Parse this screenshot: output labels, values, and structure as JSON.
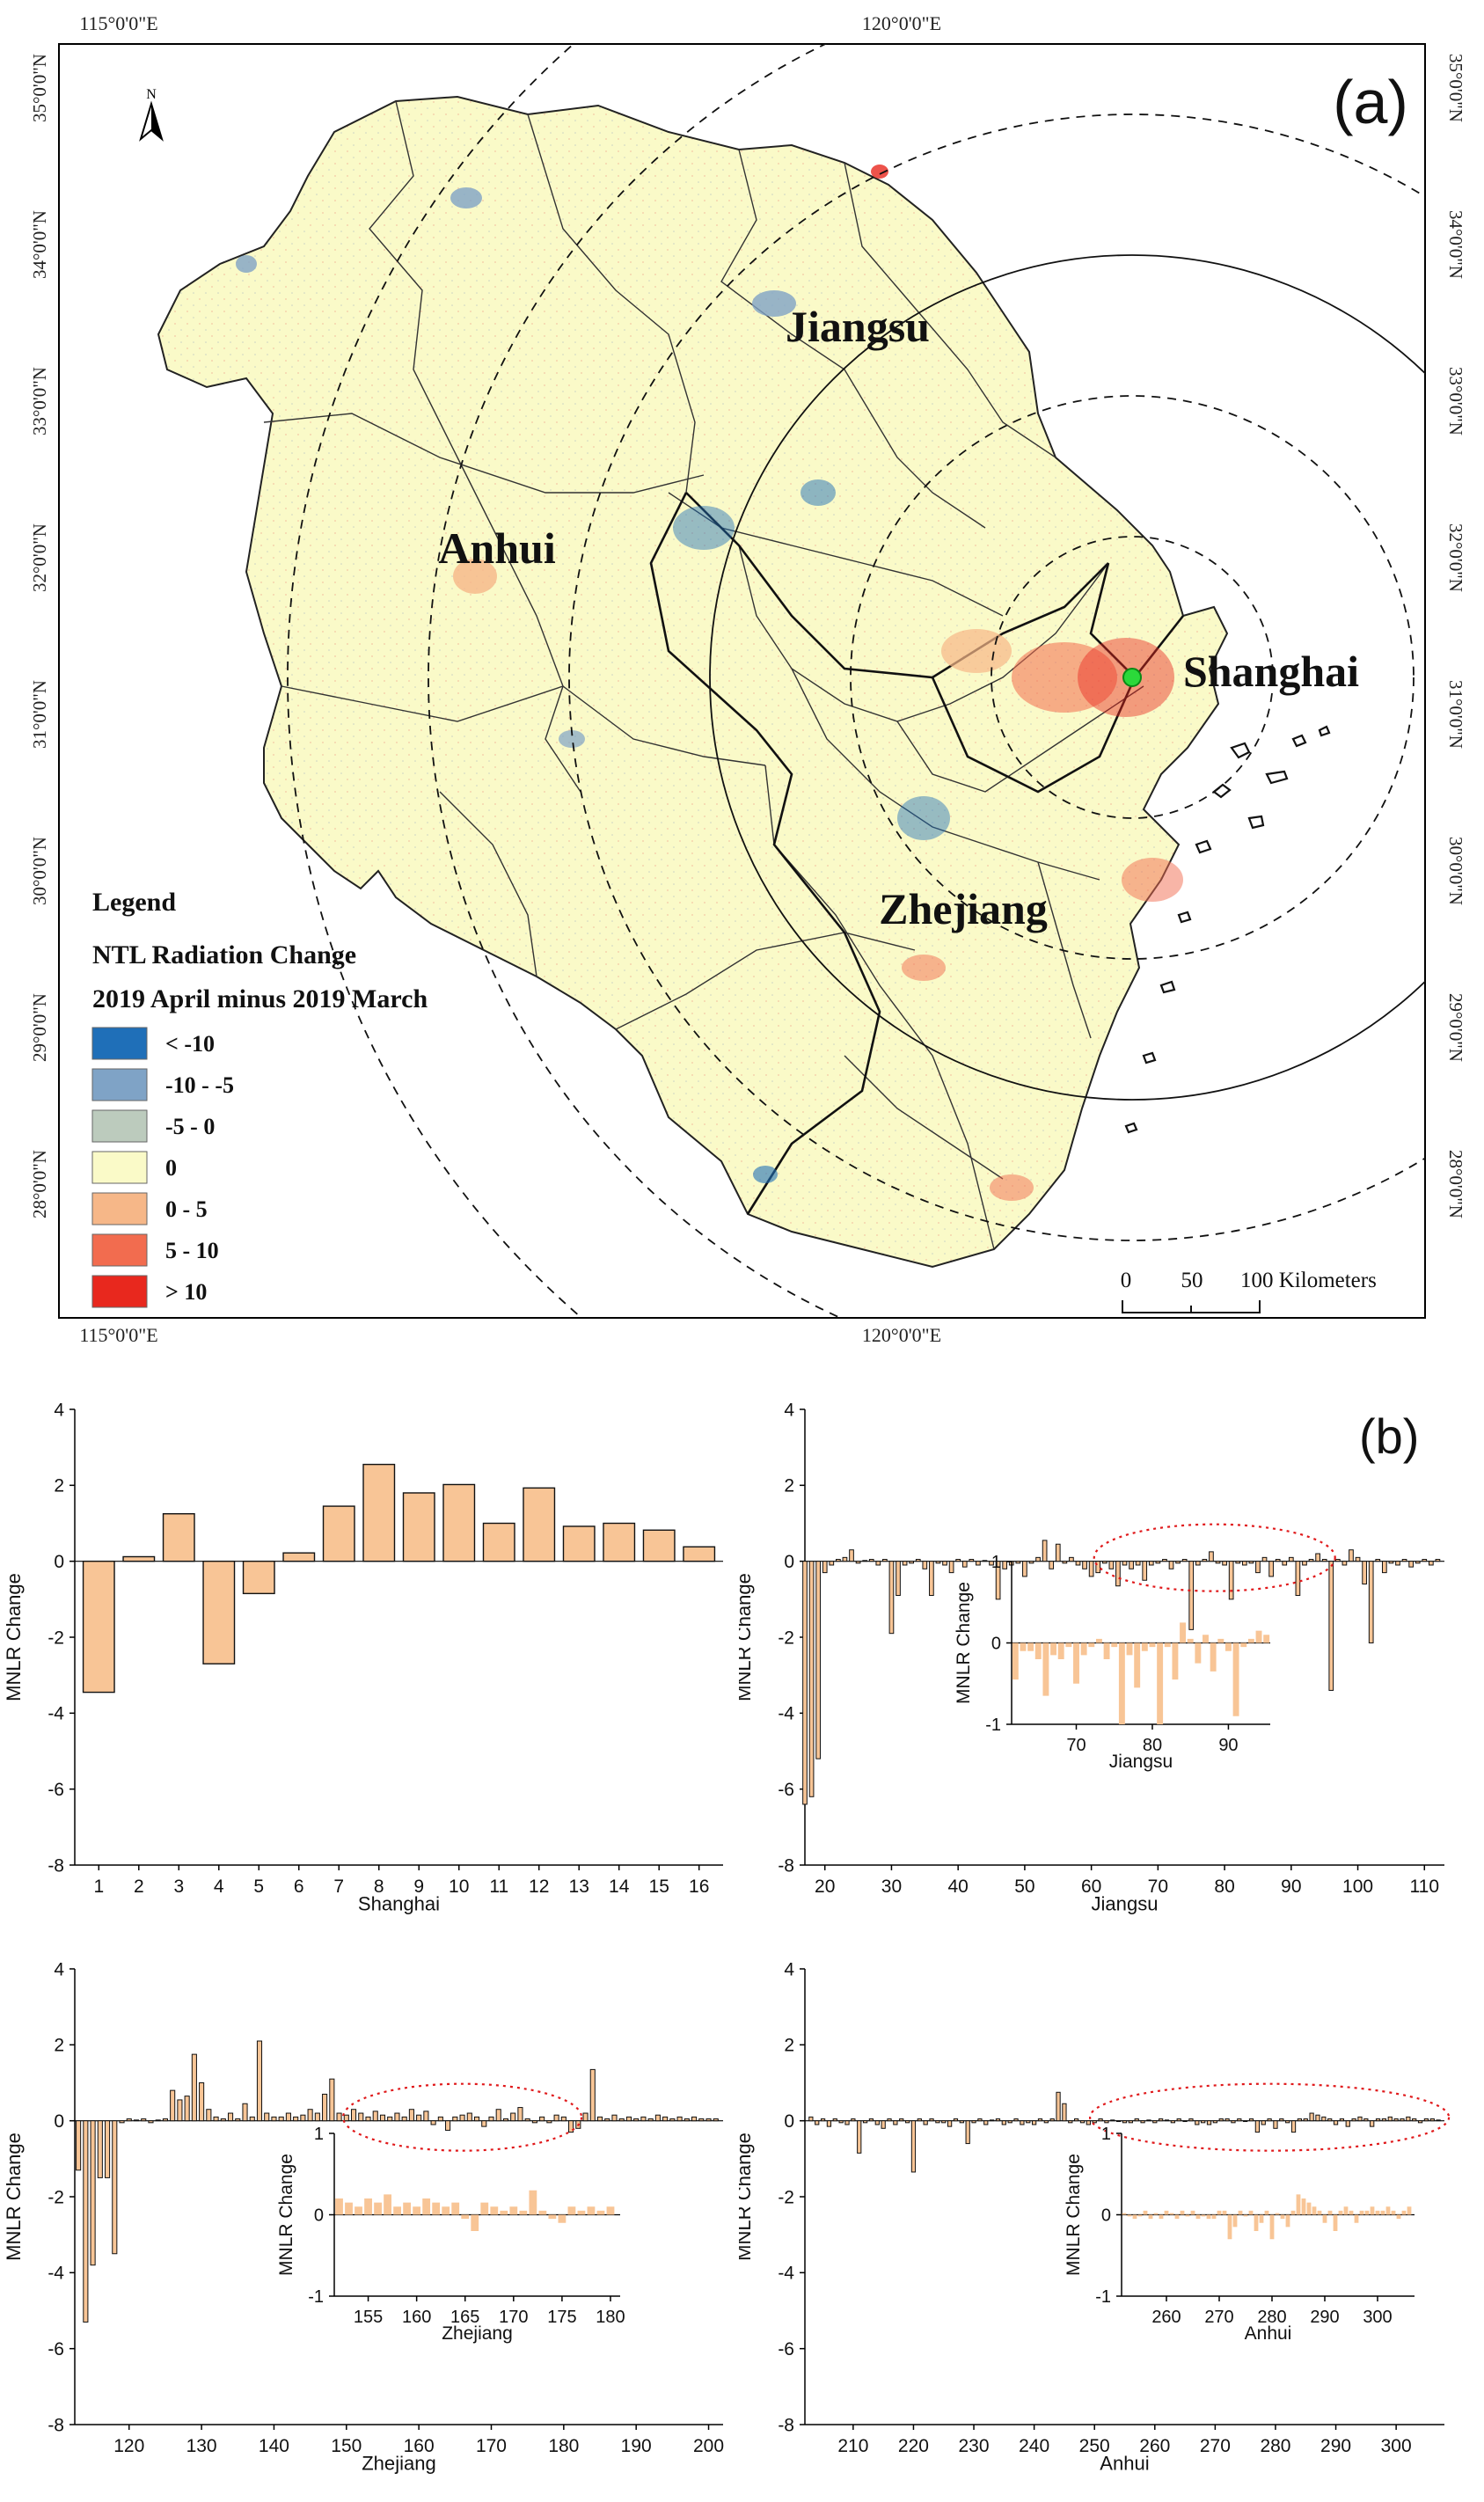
{
  "panel_a": {
    "label": "(a)",
    "top_coords": [
      "115°0'0\"E",
      "120°0'0\"E"
    ],
    "bottom_coords": [
      "115°0'0\"E",
      "120°0'0\"E"
    ],
    "lat_labels": [
      "35°0'0\"N",
      "34°0'0\"N",
      "33°0'0\"N",
      "32°0'0\"N",
      "31°0'0\"N",
      "30°0'0\"N",
      "29°0'0\"N",
      "28°0'0\"N"
    ],
    "north_letter": "N",
    "provinces": [
      "Jiangsu",
      "Anhui",
      "Shanghai",
      "Zhejiang"
    ],
    "legend": {
      "heading": "Legend",
      "title": "NTL Radiation Change",
      "subtitle": "2019 April minus 2019 March",
      "items": [
        {
          "label": "< -10",
          "color": "#1f6fb8"
        },
        {
          "label": "-10 - -5",
          "color": "#7fa3c6"
        },
        {
          "label": "-5 - 0",
          "color": "#bccbbd"
        },
        {
          "label": "0",
          "color": "#fafac8"
        },
        {
          "label": "0 - 5",
          "color": "#f6b788"
        },
        {
          "label": "5 - 10",
          "color": "#f26c4f"
        },
        {
          "label": "> 10",
          "color": "#e8281e"
        }
      ]
    },
    "scale_bar": {
      "ticks": [
        "0",
        "50",
        "100 Kilometers"
      ]
    }
  },
  "panel_b_label": "(b)",
  "chart_data": [
    {
      "type": "bar",
      "xlabel": "Shanghai",
      "ylabel": "MNLR Change",
      "ylim": [
        -8,
        4
      ],
      "yticks": [
        4,
        2,
        0,
        -2,
        -4,
        -6,
        -8
      ],
      "xlim": [
        0.4,
        16.6
      ],
      "xticks": [
        1,
        2,
        3,
        4,
        5,
        6,
        7,
        8,
        9,
        10,
        11,
        12,
        13,
        14,
        15,
        16
      ],
      "x": [
        1,
        2,
        3,
        4,
        5,
        6,
        7,
        8,
        9,
        10,
        11,
        12,
        13,
        14,
        15,
        16
      ],
      "values": [
        -3.45,
        0.12,
        1.25,
        -2.7,
        -0.85,
        0.22,
        1.45,
        2.55,
        1.8,
        2.02,
        1.0,
        1.93,
        0.92,
        1.0,
        0.82,
        0.38
      ]
    },
    {
      "type": "bar",
      "xlabel": "Jiangsu",
      "ylabel": "MNLR Change",
      "ylim": [
        -8,
        4
      ],
      "yticks": [
        4,
        2,
        0,
        -2,
        -4,
        -6,
        -8
      ],
      "xlim": [
        17,
        113
      ],
      "xticks": [
        20,
        30,
        40,
        50,
        60,
        70,
        80,
        90,
        100,
        110
      ],
      "x": [
        17,
        18,
        19,
        20,
        21,
        22,
        23,
        24,
        25,
        26,
        27,
        28,
        29,
        30,
        31,
        32,
        33,
        34,
        35,
        36,
        37,
        38,
        39,
        40,
        41,
        42,
        43,
        44,
        45,
        46,
        47,
        48,
        49,
        50,
        51,
        52,
        53,
        54,
        55,
        56,
        57,
        58,
        59,
        60,
        61,
        62,
        63,
        64,
        65,
        66,
        67,
        68,
        69,
        70,
        71,
        72,
        73,
        74,
        75,
        76,
        77,
        78,
        79,
        80,
        81,
        82,
        83,
        84,
        85,
        86,
        87,
        88,
        89,
        90,
        91,
        92,
        93,
        94,
        95,
        96,
        97,
        98,
        99,
        100,
        101,
        102,
        103,
        104,
        105,
        106,
        107,
        108,
        109,
        110,
        111,
        112
      ],
      "values": [
        -6.4,
        -6.2,
        -5.2,
        -0.3,
        -0.1,
        0.05,
        0.1,
        0.3,
        -0.05,
        0.02,
        0.05,
        -0.1,
        0.05,
        -1.9,
        -0.9,
        -0.1,
        -0.05,
        0.05,
        -0.2,
        -0.9,
        -0.05,
        -0.1,
        -0.3,
        0.05,
        -0.15,
        0.05,
        -0.1,
        0.02,
        -0.1,
        -1.0,
        -0.2,
        -0.1,
        -0.05,
        -0.4,
        -0.05,
        0.1,
        0.55,
        -0.2,
        0.45,
        -0.05,
        0.1,
        -0.1,
        -0.2,
        -0.4,
        -0.3,
        -0.05,
        -0.2,
        -0.65,
        -0.1,
        -0.2,
        -0.1,
        -0.5,
        -0.1,
        -0.05,
        0.05,
        -0.2,
        -0.05,
        0.05,
        -1.8,
        -0.1,
        0.05,
        0.25,
        -0.05,
        -0.1,
        -1.0,
        -0.05,
        -0.1,
        -0.05,
        -0.3,
        0.1,
        -0.4,
        0.05,
        -0.1,
        0.1,
        -0.9,
        -0.1,
        0.05,
        0.2,
        0.05,
        -3.4,
        0.05,
        -0.1,
        0.3,
        0.1,
        -0.6,
        -2.15,
        0.05,
        -0.3,
        -0.05,
        -0.1,
        0.05,
        -0.15,
        -0.05,
        0.05,
        -0.1,
        0.05
      ],
      "inset": {
        "xlabel": "Jiangsu",
        "ylabel": "MNLR Change",
        "ylim": [
          -1,
          1
        ],
        "yticks": [
          1,
          0,
          -1
        ],
        "xlim": [
          61.5,
          95.5
        ],
        "xticks": [
          70,
          80,
          90
        ],
        "x": [
          62,
          63,
          64,
          65,
          66,
          67,
          68,
          69,
          70,
          71,
          72,
          73,
          74,
          75,
          76,
          77,
          78,
          79,
          80,
          81,
          82,
          83,
          84,
          85,
          86,
          87,
          88,
          89,
          90,
          91,
          92,
          93,
          94,
          95
        ],
        "values": [
          -0.45,
          -0.1,
          -0.1,
          -0.2,
          -0.65,
          -0.15,
          -0.2,
          -0.05,
          -0.5,
          -0.15,
          -0.05,
          0.05,
          -0.2,
          -0.05,
          -1.0,
          -0.15,
          -0.55,
          -0.1,
          -0.05,
          -1.0,
          -0.05,
          -0.45,
          0.25,
          0.05,
          -0.25,
          0.1,
          -0.35,
          0.05,
          -0.1,
          -0.9,
          -0.05,
          0.05,
          0.15,
          0.1
        ]
      },
      "highlight": {
        "x_range": [
          62,
          95
        ],
        "shape": "dotted ellipse",
        "color": "#e0191b"
      }
    },
    {
      "type": "bar",
      "xlabel": "Zhejiang",
      "ylabel": "MNLR Change",
      "ylim": [
        -8,
        4
      ],
      "yticks": [
        4,
        2,
        0,
        -2,
        -4,
        -6,
        -8
      ],
      "xlim": [
        112.5,
        202
      ],
      "xticks": [
        120,
        130,
        140,
        150,
        160,
        170,
        180,
        190,
        200
      ],
      "x": [
        113,
        114,
        115,
        116,
        117,
        118,
        119,
        120,
        121,
        122,
        123,
        124,
        125,
        126,
        127,
        128,
        129,
        130,
        131,
        132,
        133,
        134,
        135,
        136,
        137,
        138,
        139,
        140,
        141,
        142,
        143,
        144,
        145,
        146,
        147,
        148,
        149,
        150,
        151,
        152,
        153,
        154,
        155,
        156,
        157,
        158,
        159,
        160,
        161,
        162,
        163,
        164,
        165,
        166,
        167,
        168,
        169,
        170,
        171,
        172,
        173,
        174,
        175,
        176,
        177,
        178,
        179,
        180,
        181,
        182,
        183,
        184,
        185,
        186,
        187,
        188,
        189,
        190,
        191,
        192,
        193,
        194,
        195,
        196,
        197,
        198,
        199,
        200,
        201
      ],
      "values": [
        -1.3,
        -5.3,
        -3.8,
        -1.5,
        -1.5,
        -3.5,
        -0.05,
        0.05,
        0.02,
        0.05,
        -0.05,
        0.02,
        0.05,
        0.8,
        0.55,
        0.65,
        1.75,
        1.0,
        0.3,
        0.1,
        0.05,
        0.2,
        0.05,
        0.45,
        0.1,
        2.1,
        0.2,
        0.1,
        0.1,
        0.2,
        0.1,
        0.15,
        0.3,
        0.2,
        0.7,
        1.1,
        0.2,
        0.15,
        0.3,
        0.2,
        0.1,
        0.25,
        0.15,
        0.1,
        0.2,
        0.1,
        0.3,
        0.15,
        0.25,
        -0.1,
        0.1,
        -0.25,
        0.1,
        0.15,
        0.2,
        0.1,
        -0.15,
        0.1,
        0.3,
        0.05,
        0.2,
        0.35,
        0.05,
        -0.05,
        0.1,
        -0.05,
        0.15,
        0.1,
        -0.3,
        -0.2,
        0.2,
        1.35,
        0.1,
        0.05,
        0.15,
        0.05,
        0.1,
        0.05,
        0.1,
        0.05,
        0.15,
        0.1,
        0.05,
        0.1,
        0.05,
        0.1,
        0.05,
        0.05,
        0.05
      ],
      "inset": {
        "xlabel": "Zhejiang",
        "ylabel": "MNLR Change",
        "ylim": [
          -1,
          1
        ],
        "yticks": [
          1,
          0,
          -1
        ],
        "xlim": [
          151.5,
          181
        ],
        "xticks": [
          155,
          160,
          165,
          170,
          175,
          180
        ],
        "x": [
          152,
          153,
          154,
          155,
          156,
          157,
          158,
          159,
          160,
          161,
          162,
          163,
          164,
          165,
          166,
          167,
          168,
          169,
          170,
          171,
          172,
          173,
          174,
          175,
          176,
          177,
          178,
          179,
          180
        ],
        "values": [
          0.2,
          0.15,
          0.1,
          0.2,
          0.15,
          0.25,
          0.1,
          0.15,
          0.1,
          0.2,
          0.15,
          0.1,
          0.15,
          -0.05,
          -0.2,
          0.15,
          0.1,
          0.05,
          0.1,
          0.05,
          0.3,
          0.05,
          -0.05,
          -0.1,
          0.1,
          0.05,
          0.1,
          0.05,
          0.1
        ]
      },
      "highlight": {
        "x_range": [
          151,
          181
        ],
        "shape": "dotted ellipse",
        "color": "#e0191b"
      }
    },
    {
      "type": "bar",
      "xlabel": "Anhui",
      "ylabel": "MNLR Change",
      "ylim": [
        -8,
        4
      ],
      "yticks": [
        4,
        2,
        0,
        -2,
        -4,
        -6,
        -8
      ],
      "xlim": [
        202,
        308
      ],
      "xticks": [
        210,
        220,
        230,
        240,
        250,
        260,
        270,
        280,
        290,
        300
      ],
      "x": [
        203,
        204,
        205,
        206,
        207,
        208,
        209,
        210,
        211,
        212,
        213,
        214,
        215,
        216,
        217,
        218,
        219,
        220,
        221,
        222,
        223,
        224,
        225,
        226,
        227,
        228,
        229,
        230,
        231,
        232,
        233,
        234,
        235,
        236,
        237,
        238,
        239,
        240,
        241,
        242,
        243,
        244,
        245,
        246,
        247,
        248,
        249,
        250,
        251,
        252,
        253,
        254,
        255,
        256,
        257,
        258,
        259,
        260,
        261,
        262,
        263,
        264,
        265,
        266,
        267,
        268,
        269,
        270,
        271,
        272,
        273,
        274,
        275,
        276,
        277,
        278,
        279,
        280,
        281,
        282,
        283,
        284,
        285,
        286,
        287,
        288,
        289,
        290,
        291,
        292,
        293,
        294,
        295,
        296,
        297,
        298,
        299,
        300,
        301,
        302,
        303,
        304,
        305,
        306,
        307
      ],
      "values": [
        0.1,
        -0.1,
        0.05,
        -0.15,
        0.05,
        -0.05,
        -0.1,
        0.05,
        -0.85,
        -0.05,
        0.05,
        -0.1,
        -0.2,
        0.05,
        -0.1,
        0.05,
        -0.05,
        -1.35,
        0.05,
        -0.1,
        0.05,
        -0.05,
        -0.05,
        -0.15,
        0.05,
        -0.05,
        -0.6,
        -0.05,
        0.05,
        -0.1,
        0.02,
        0.05,
        -0.1,
        -0.05,
        0.05,
        -0.1,
        -0.05,
        -0.1,
        0.05,
        -0.05,
        0.05,
        0.75,
        0.45,
        -0.05,
        0.05,
        -0.05,
        -0.1,
        -0.05,
        0.05,
        -0.05,
        0.02,
        -0.02,
        -0.05,
        -0.05,
        0.05,
        -0.05,
        0.02,
        -0.05,
        0.05,
        0.02,
        -0.05,
        0.05,
        -0.02,
        0.05,
        -0.1,
        -0.05,
        -0.1,
        -0.05,
        0.05,
        0.05,
        -0.05,
        0.05,
        -0.02,
        0.05,
        -0.3,
        -0.1,
        0.05,
        -0.2,
        0.05,
        -0.05,
        -0.3,
        0.05,
        0.05,
        0.2,
        0.15,
        0.1,
        0.05,
        -0.1,
        0.05,
        -0.15,
        0.05,
        0.1,
        0.05,
        -0.15,
        0.05,
        0.05,
        0.1,
        0.05,
        0.05,
        0.1,
        0.05,
        -0.05,
        0.05,
        0.05,
        0.02
      ],
      "inset": {
        "xlabel": "Anhui",
        "ylabel": "MNLR Change",
        "ylim": [
          -1,
          1
        ],
        "yticks": [
          1,
          0,
          -1
        ],
        "xlim": [
          251.5,
          307
        ],
        "xticks": [
          260,
          270,
          280,
          290,
          300
        ],
        "x": [
          252,
          253,
          254,
          255,
          256,
          257,
          258,
          259,
          260,
          261,
          262,
          263,
          264,
          265,
          266,
          267,
          268,
          269,
          270,
          271,
          272,
          273,
          274,
          275,
          276,
          277,
          278,
          279,
          280,
          281,
          282,
          283,
          284,
          285,
          286,
          287,
          288,
          289,
          290,
          291,
          292,
          293,
          294,
          295,
          296,
          297,
          298,
          299,
          300,
          301,
          302,
          303,
          304,
          305,
          306
        ],
        "values": [
          0.02,
          -0.02,
          -0.05,
          -0.02,
          0.05,
          -0.05,
          0.02,
          -0.05,
          0.05,
          0.02,
          -0.05,
          0.05,
          -0.02,
          0.05,
          -0.05,
          -0.02,
          -0.05,
          -0.05,
          0.05,
          0.05,
          -0.3,
          -0.15,
          0.05,
          -0.02,
          0.05,
          -0.2,
          -0.1,
          0.05,
          -0.3,
          0.02,
          -0.05,
          -0.15,
          0.05,
          0.25,
          0.2,
          0.15,
          0.1,
          0.05,
          -0.1,
          0.05,
          -0.2,
          0.05,
          0.1,
          0.05,
          -0.1,
          0.05,
          0.05,
          0.1,
          0.05,
          0.05,
          0.1,
          0.05,
          -0.05,
          0.05,
          0.1
        ]
      },
      "highlight": {
        "x_range": [
          251,
          307
        ],
        "shape": "dotted ellipse",
        "color": "#e0191b"
      }
    }
  ]
}
